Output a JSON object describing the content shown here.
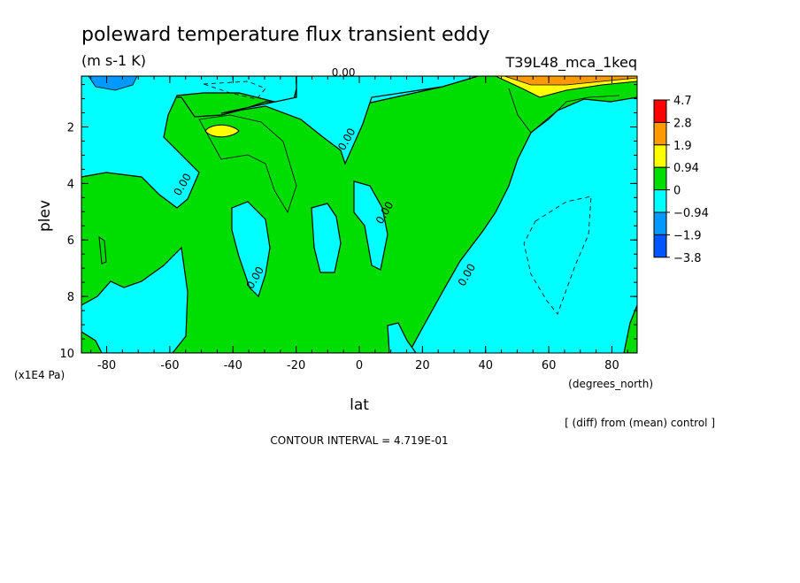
{
  "chart_data": {
    "type": "heatmap",
    "title": "poleward temperature flux transient eddy",
    "units": "(m s-1 K)",
    "experiment": "T39L48_mca_1keq",
    "xlabel": "lat",
    "ylabel": "plev",
    "x_units": "(degrees_north)",
    "y_units": "(x1E4 Pa)",
    "x_ticks": [
      "-80",
      "-60",
      "-40",
      "-20",
      "0",
      "20",
      "40",
      "60",
      "80"
    ],
    "y_ticks": [
      "2",
      "4",
      "6",
      "8",
      "10"
    ],
    "xlim": [
      -88,
      88
    ],
    "ylim": [
      10,
      0.2
    ],
    "y_reversed": true,
    "legend": {
      "position": "right",
      "labels": [
        "4.7",
        "2.8",
        "1.9",
        "0.94",
        "0",
        "−0.94",
        "−1.9",
        "−3.8"
      ],
      "colors": [
        "#ff0000",
        "#ff9900",
        "#ffff00",
        "#00dd00",
        "#00ffff",
        "#0099ff",
        "#0055ff"
      ]
    },
    "contour_labels": [
      {
        "text": "0.00",
        "x": -5,
        "y": 0.2
      },
      {
        "text": "0.00",
        "x": -3,
        "y": 2.5
      },
      {
        "text": "0.00",
        "x": -55,
        "y": 4.1
      },
      {
        "text": "0.00",
        "x": 9,
        "y": 5.1
      },
      {
        "text": "0.00",
        "x": -32,
        "y": 7.4
      },
      {
        "text": "0.00",
        "x": 35,
        "y": 7.3
      }
    ],
    "note": "[ (diff) from (mean) control ]",
    "contour_interval": "CONTOUR INTERVAL = 4.719E-01"
  }
}
